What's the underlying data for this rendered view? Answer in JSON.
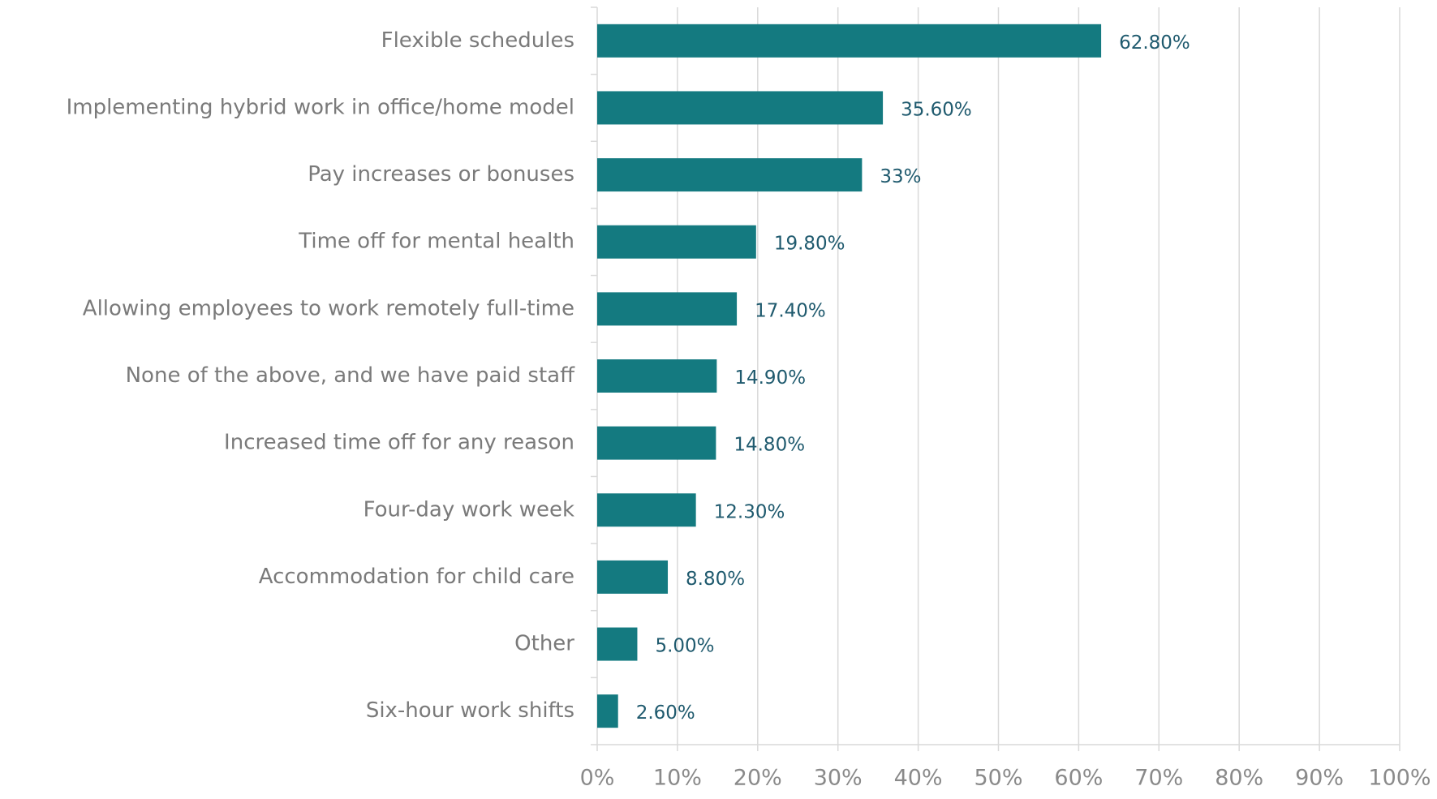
{
  "chart_data": {
    "type": "bar",
    "orientation": "horizontal",
    "categories": [
      "Flexible schedules",
      "Implementing hybrid work in office/home model",
      "Pay increases or bonuses",
      "Time off for mental health",
      "Allowing employees to work remotely full-time",
      "None of the above, and we have paid staff",
      "Increased time off for any reason",
      "Four-day work week",
      "Accommodation for child care",
      "Other",
      "Six-hour work shifts"
    ],
    "values": [
      62.8,
      35.6,
      33,
      19.8,
      17.4,
      14.9,
      14.8,
      12.3,
      8.8,
      5,
      2.6
    ],
    "value_labels": [
      "62.80%",
      "35.60%",
      "33%",
      "19.80%",
      "17.40%",
      "14.90%",
      "14.80%",
      "12.30%",
      "8.80%",
      "5.00%",
      "2.60%"
    ],
    "color": "#147a80",
    "xlim": [
      0,
      100
    ],
    "xticks": [
      {
        "value": 0,
        "label": "0%"
      },
      {
        "value": 10,
        "label": "10%"
      },
      {
        "value": 20,
        "label": "20%"
      },
      {
        "value": 30,
        "label": "30%"
      },
      {
        "value": 40,
        "label": "40%"
      },
      {
        "value": 50,
        "label": "50%"
      },
      {
        "value": 60,
        "label": "60%"
      },
      {
        "value": 70,
        "label": "70%"
      },
      {
        "value": 80,
        "label": "80%"
      },
      {
        "value": 90,
        "label": "90%"
      },
      {
        "value": 100,
        "label": "100%"
      }
    ],
    "grid": true
  }
}
